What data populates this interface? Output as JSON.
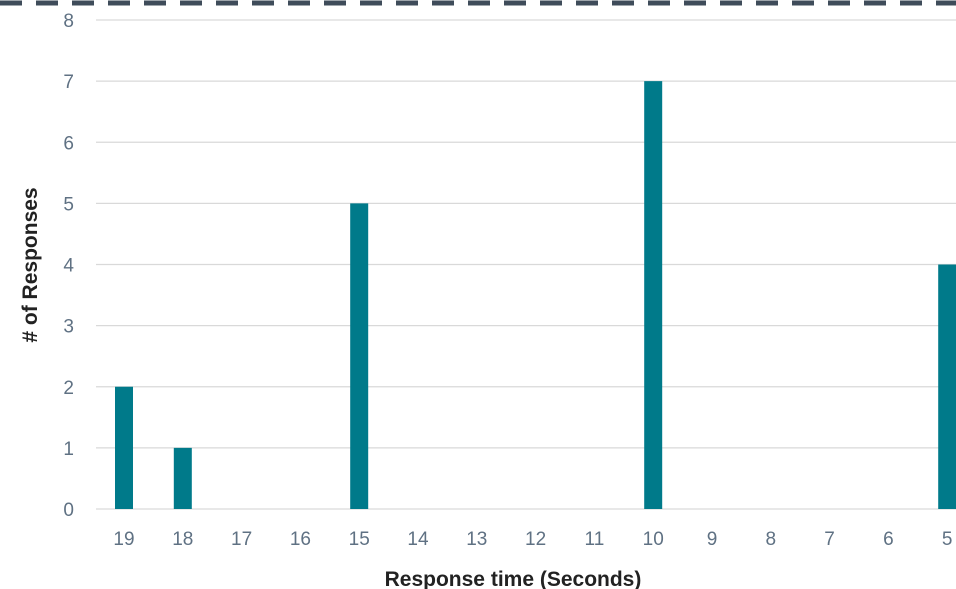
{
  "chart_data": {
    "type": "bar",
    "categories": [
      "19",
      "18",
      "17",
      "16",
      "15",
      "14",
      "13",
      "12",
      "11",
      "10",
      "9",
      "8",
      "7",
      "6",
      "5"
    ],
    "values": [
      2,
      1,
      0,
      0,
      5,
      0,
      0,
      0,
      0,
      7,
      0,
      0,
      0,
      0,
      4
    ],
    "xlabel": "Response time (Seconds)",
    "ylabel": "# of Responses",
    "ylim": [
      0,
      8
    ],
    "yticks": [
      0,
      1,
      2,
      3,
      4,
      5,
      6,
      7,
      8
    ],
    "grid": true,
    "legend": "none"
  },
  "colors": {
    "bar": "#007a8a",
    "grid": "#d9d9d9",
    "border": "#3f4c5a",
    "tick_text": "#5f7183",
    "axis_title": "#222222"
  }
}
